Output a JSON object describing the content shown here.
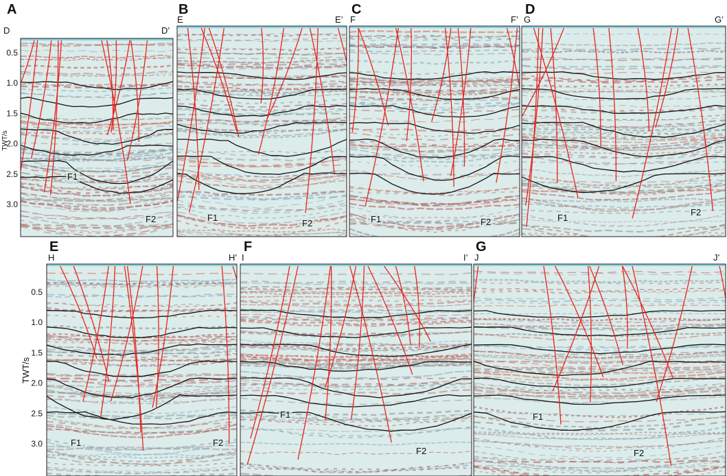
{
  "panels": [
    {
      "letter": "A",
      "left": "D",
      "right": "D’",
      "faults": [
        "F1",
        "F2"
      ],
      "axis": {
        "label": "TWT/s",
        "ticks": [
          "0.5",
          "1.0",
          "1.5",
          "2.0",
          "2.5",
          "3.0"
        ]
      }
    },
    {
      "letter": "B",
      "left": "E",
      "right": "E’",
      "faults": [
        "F1",
        "F2"
      ]
    },
    {
      "letter": "C",
      "left": "F",
      "right": "F’",
      "faults": [
        "F1",
        "F2"
      ]
    },
    {
      "letter": "D",
      "left": "G",
      "right": "G’",
      "faults": [
        "F1",
        "F2"
      ]
    },
    {
      "letter": "E",
      "left": "H",
      "right": "H’",
      "faults": [
        "F1",
        "F2"
      ],
      "axis": {
        "label": "TWT/s",
        "ticks": [
          "0.5",
          "1.0",
          "1.5",
          "2.0",
          "2.5",
          "3.0"
        ]
      }
    },
    {
      "letter": "F",
      "left": "I",
      "right": "I’",
      "faults": [
        "F1",
        "F2"
      ]
    },
    {
      "letter": "G",
      "left": "J",
      "right": "J’",
      "faults": [
        "F1",
        "F2"
      ]
    }
  ]
}
